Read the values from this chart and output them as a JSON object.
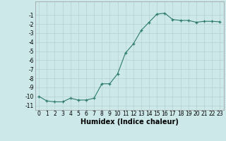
{
  "x": [
    0,
    1,
    2,
    3,
    4,
    5,
    6,
    7,
    8,
    9,
    10,
    11,
    12,
    13,
    14,
    15,
    16,
    17,
    18,
    19,
    20,
    21,
    22,
    23
  ],
  "y": [
    -10.0,
    -10.5,
    -10.6,
    -10.6,
    -10.2,
    -10.4,
    -10.4,
    -10.2,
    -8.6,
    -8.6,
    -7.5,
    -5.2,
    -4.2,
    -2.7,
    -1.8,
    -0.9,
    -0.8,
    -1.5,
    -1.6,
    -1.6,
    -1.8,
    -1.7,
    -1.7,
    -1.75
  ],
  "xlim": [
    -0.5,
    23.5
  ],
  "ylim": [
    -11.5,
    0.5
  ],
  "yticks": [
    -11,
    -10,
    -9,
    -8,
    -7,
    -6,
    -5,
    -4,
    -3,
    -2,
    -1
  ],
  "xticks": [
    0,
    1,
    2,
    3,
    4,
    5,
    6,
    7,
    8,
    9,
    10,
    11,
    12,
    13,
    14,
    15,
    16,
    17,
    18,
    19,
    20,
    21,
    22,
    23
  ],
  "xlabel": "Humidex (Indice chaleur)",
  "line_color": "#2d7a6e",
  "marker": "+",
  "bg_color": "#cce8e8",
  "grid_color": "#b8d4d4",
  "tick_fontsize": 5.5,
  "xlabel_fontsize": 7
}
